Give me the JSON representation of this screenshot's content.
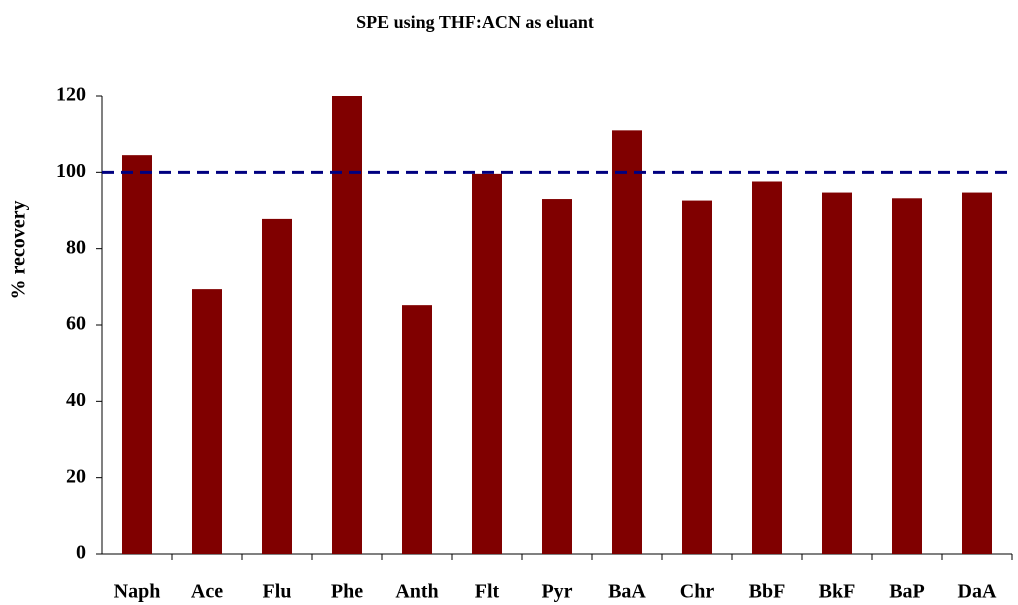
{
  "chart_data": {
    "type": "bar",
    "title": "SPE using THF:ACN as eluant",
    "y_label": "% recovery",
    "categories": [
      "Naph",
      "Ace",
      "Flu",
      "Phe",
      "Anth",
      "Flt",
      "Pyr",
      "BaA",
      "Chr",
      "BbF",
      "BkF",
      "BaP",
      "DaA"
    ],
    "values": [
      104.5,
      69.4,
      87.8,
      120,
      65.2,
      99.6,
      93,
      111,
      92.6,
      97.6,
      94.7,
      93.2,
      94.7
    ],
    "color": "#800000",
    "ylim": [
      0,
      120
    ],
    "yticks": [
      0,
      20,
      40,
      60,
      80,
      100,
      120
    ],
    "grid": false,
    "reference_line": {
      "value": 100,
      "color": "#000080"
    }
  }
}
